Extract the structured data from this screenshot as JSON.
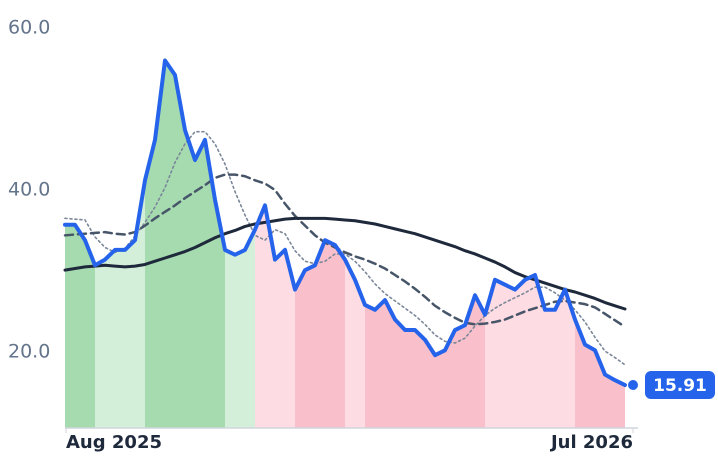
{
  "chart_data": {
    "type": "line",
    "categories": [
      "Aug 2025",
      null,
      null,
      null,
      null,
      null,
      null,
      null,
      null,
      null,
      null,
      null,
      null,
      null,
      null,
      null,
      null,
      null,
      null,
      null,
      null,
      null,
      null,
      null,
      null,
      null,
      null,
      null,
      null,
      null,
      null,
      null,
      null,
      null,
      null,
      null,
      null,
      null,
      null,
      null,
      null,
      null,
      null,
      null,
      null,
      null,
      null,
      null,
      null,
      null,
      null,
      null,
      null,
      null,
      null,
      null,
      "Jul 2026"
    ],
    "series": [
      {
        "color": "#2563eb",
        "values": [
          35.7,
          35.7,
          33.8,
          30.7,
          31.4,
          32.6,
          32.6,
          33.8,
          41.2,
          46.2,
          56.0,
          54.2,
          47.4,
          43.7,
          46.2,
          38.8,
          32.6,
          32.0,
          32.6,
          35.1,
          38.1,
          31.4,
          32.6,
          27.7,
          30.1,
          30.7,
          33.8,
          33.2,
          31.4,
          28.9,
          25.8,
          25.2,
          26.4,
          24.0,
          22.7,
          22.7,
          21.5,
          19.6,
          20.2,
          22.7,
          23.3,
          27.0,
          24.6,
          28.9,
          28.3,
          27.7,
          28.9,
          29.5,
          25.2,
          25.2,
          27.7,
          24.0,
          20.9,
          20.2,
          17.2,
          16.5,
          15.91
        ]
      },
      {
        "color": "#1e293b",
        "values": [
          30.1,
          30.3,
          30.5,
          30.6,
          30.7,
          30.6,
          30.5,
          30.6,
          30.8,
          31.2,
          31.6,
          32.0,
          32.4,
          32.9,
          33.5,
          34.1,
          34.6,
          35.0,
          35.5,
          35.8,
          36.0,
          36.2,
          36.4,
          36.5,
          36.5,
          36.5,
          36.5,
          36.4,
          36.3,
          36.2,
          36.0,
          35.8,
          35.5,
          35.2,
          34.9,
          34.6,
          34.2,
          33.8,
          33.4,
          33.0,
          32.5,
          32.1,
          31.6,
          31.1,
          30.5,
          29.8,
          29.3,
          28.9,
          28.5,
          28.1,
          27.7,
          27.4,
          27.0,
          26.6,
          26.1,
          25.7,
          25.3
        ]
      },
      {
        "color": "#475569",
        "dash": "8 5",
        "values": [
          34.4,
          34.5,
          34.6,
          34.7,
          34.8,
          34.6,
          34.5,
          34.8,
          35.6,
          36.5,
          37.3,
          38.1,
          39.0,
          39.8,
          40.6,
          41.5,
          41.9,
          41.9,
          41.7,
          41.2,
          40.8,
          40.0,
          38.3,
          36.8,
          35.6,
          34.4,
          33.5,
          32.9,
          32.3,
          31.8,
          31.4,
          30.9,
          30.3,
          29.5,
          28.7,
          27.8,
          26.8,
          25.7,
          24.9,
          24.2,
          23.6,
          23.4,
          23.5,
          23.7,
          24.0,
          24.5,
          25.0,
          25.4,
          25.8,
          26.2,
          26.3,
          26.1,
          25.9,
          25.5,
          24.7,
          23.9,
          23.1
        ]
      },
      {
        "color": "#7b8798",
        "dash": "2 3",
        "values": [
          36.5,
          36.4,
          36.3,
          34.2,
          32.9,
          32.3,
          32.8,
          34.3,
          36.0,
          37.9,
          40.3,
          43.4,
          45.7,
          47.2,
          47.2,
          45.7,
          43.2,
          39.8,
          36.9,
          34.4,
          33.8,
          35.1,
          34.6,
          32.5,
          31.2,
          30.9,
          31.2,
          32.1,
          32.1,
          31.2,
          29.9,
          28.4,
          27.2,
          26.3,
          25.4,
          24.5,
          23.4,
          22.1,
          21.3,
          21.1,
          21.7,
          23.2,
          24.5,
          25.4,
          26.1,
          26.7,
          27.3,
          28.0,
          28.0,
          27.3,
          26.4,
          25.2,
          23.7,
          21.8,
          20.1,
          19.3,
          18.4
        ]
      }
    ],
    "bands": [
      {
        "from": 0,
        "to": 3,
        "color": "#a6dbb0"
      },
      {
        "from": 3,
        "to": 8,
        "color": "#d3efd9"
      },
      {
        "from": 8,
        "to": 16,
        "color": "#a6dbb0"
      },
      {
        "from": 16,
        "to": 19,
        "color": "#d3efd9"
      },
      {
        "from": 19,
        "to": 23,
        "color": "#fddce3"
      },
      {
        "from": 23,
        "to": 28,
        "color": "#f9c0cb"
      },
      {
        "from": 28,
        "to": 30,
        "color": "#fddce3"
      },
      {
        "from": 30,
        "to": 42,
        "color": "#f9c0cb"
      },
      {
        "from": 42,
        "to": 51,
        "color": "#fddce3"
      },
      {
        "from": 51,
        "to": 56,
        "color": "#f9c0cb"
      }
    ],
    "ylim": [
      10.6,
      61.0
    ],
    "yticks": [
      {
        "value": 20,
        "label": "20.0"
      },
      {
        "value": 40,
        "label": "40.0"
      },
      {
        "value": 60,
        "label": "60.0"
      }
    ]
  }
}
